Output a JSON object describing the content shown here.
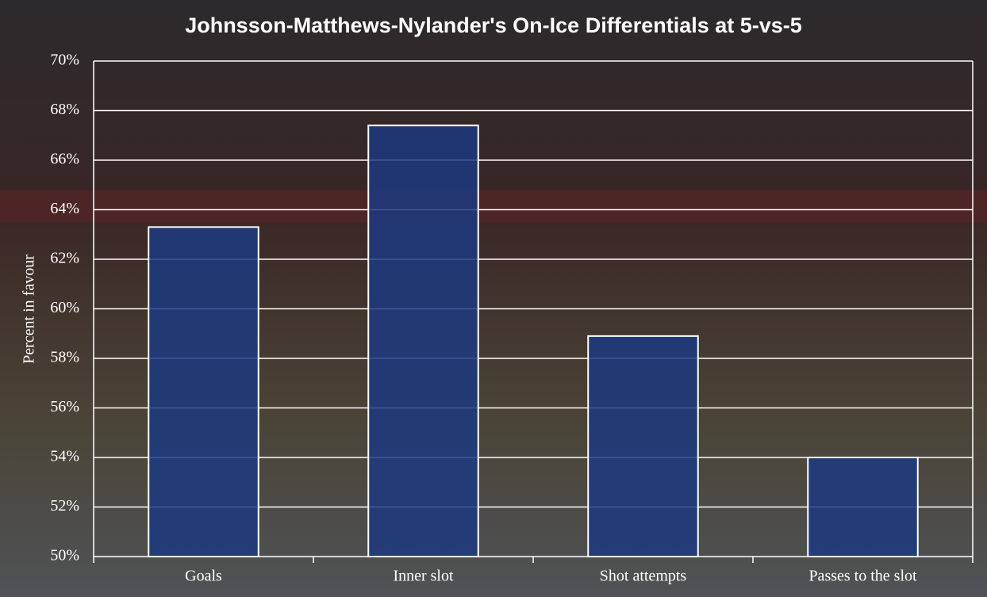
{
  "chart_data": {
    "type": "bar",
    "title": "Johnsson-Matthews-Nylander's On-Ice Differentials at 5-vs-5",
    "y_label": "Percent in favour",
    "categories": [
      "Goals",
      "Inner slot",
      "Shot attempts",
      "Passes to the slot"
    ],
    "values": [
      63.3,
      67.4,
      58.9,
      54.0
    ],
    "color": "#1c3a80",
    "ylim": [
      50,
      70
    ],
    "yticks": [
      {
        "value": 50,
        "label": "50%"
      },
      {
        "value": 52,
        "label": "52%"
      },
      {
        "value": 54,
        "label": "54%"
      },
      {
        "value": 56,
        "label": "56%"
      },
      {
        "value": 58,
        "label": "58%"
      },
      {
        "value": 60,
        "label": "60%"
      },
      {
        "value": 62,
        "label": "62%"
      },
      {
        "value": 64,
        "label": "64%"
      },
      {
        "value": 66,
        "label": "66%"
      },
      {
        "value": 68,
        "label": "68%"
      },
      {
        "value": 70,
        "label": "70%"
      }
    ],
    "grid": true
  }
}
